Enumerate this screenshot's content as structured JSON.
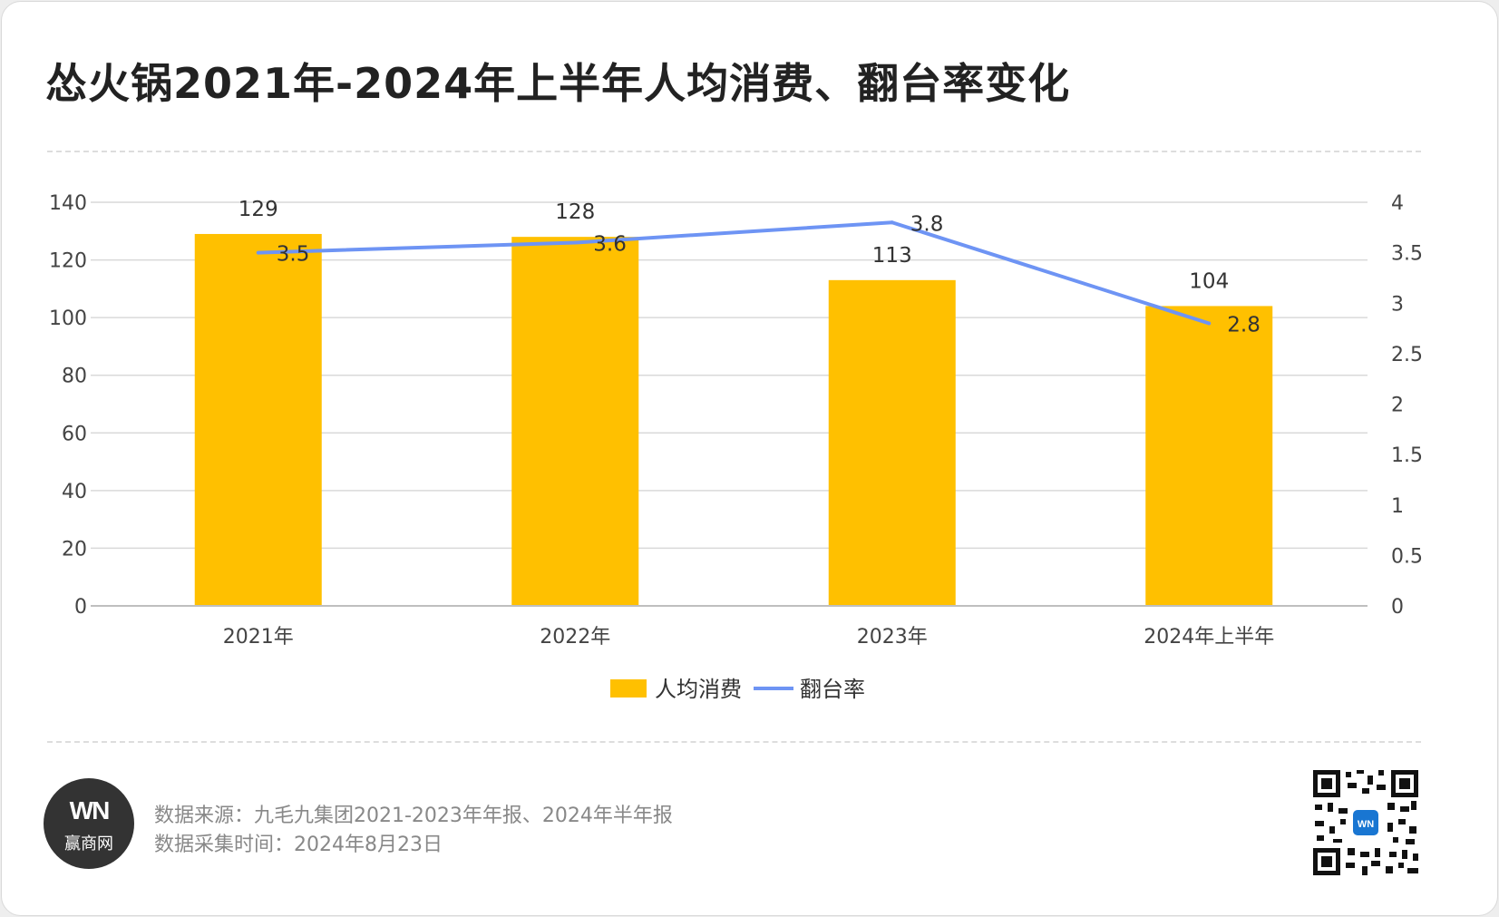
{
  "title": "怂火锅2021年-2024年上半年人均消费、翻台率变化",
  "source_line1": "数据来源：九毛九集团2021-2023年年报、2024年半年报",
  "source_line2": "数据采集时间：2024年8月23日",
  "logo": {
    "mark": "WN",
    "name": "赢商网",
    "icon": "win-logo-icon"
  },
  "qr_icon": "qr-code-icon",
  "colors": {
    "bar": "#FFC000",
    "line": "#6E94F4",
    "grid": "#d9d9d9"
  },
  "chart_data": {
    "type": "bar",
    "categories": [
      "2021年",
      "2022年",
      "2023年",
      "2024年上半年"
    ],
    "series": [
      {
        "name": "人均消费",
        "type": "bar",
        "axis": "left",
        "values": [
          129,
          128,
          113,
          104
        ],
        "labels": [
          "129",
          "128",
          "113",
          "104"
        ]
      },
      {
        "name": "翻台率",
        "type": "line",
        "axis": "right",
        "values": [
          3.5,
          3.6,
          3.8,
          2.8
        ],
        "labels": [
          "3.5",
          "3.6",
          "3.8",
          "2.8"
        ]
      }
    ],
    "y_left": {
      "min": 0,
      "max": 140,
      "ticks": [
        "0",
        "20",
        "40",
        "60",
        "80",
        "100",
        "120",
        "140"
      ]
    },
    "y_right": {
      "min": 0,
      "max": 4,
      "ticks": [
        "0",
        "0.5",
        "1",
        "1.5",
        "2",
        "2.5",
        "3",
        "3.5",
        "4"
      ]
    },
    "grid": true,
    "legend": "bottom"
  }
}
